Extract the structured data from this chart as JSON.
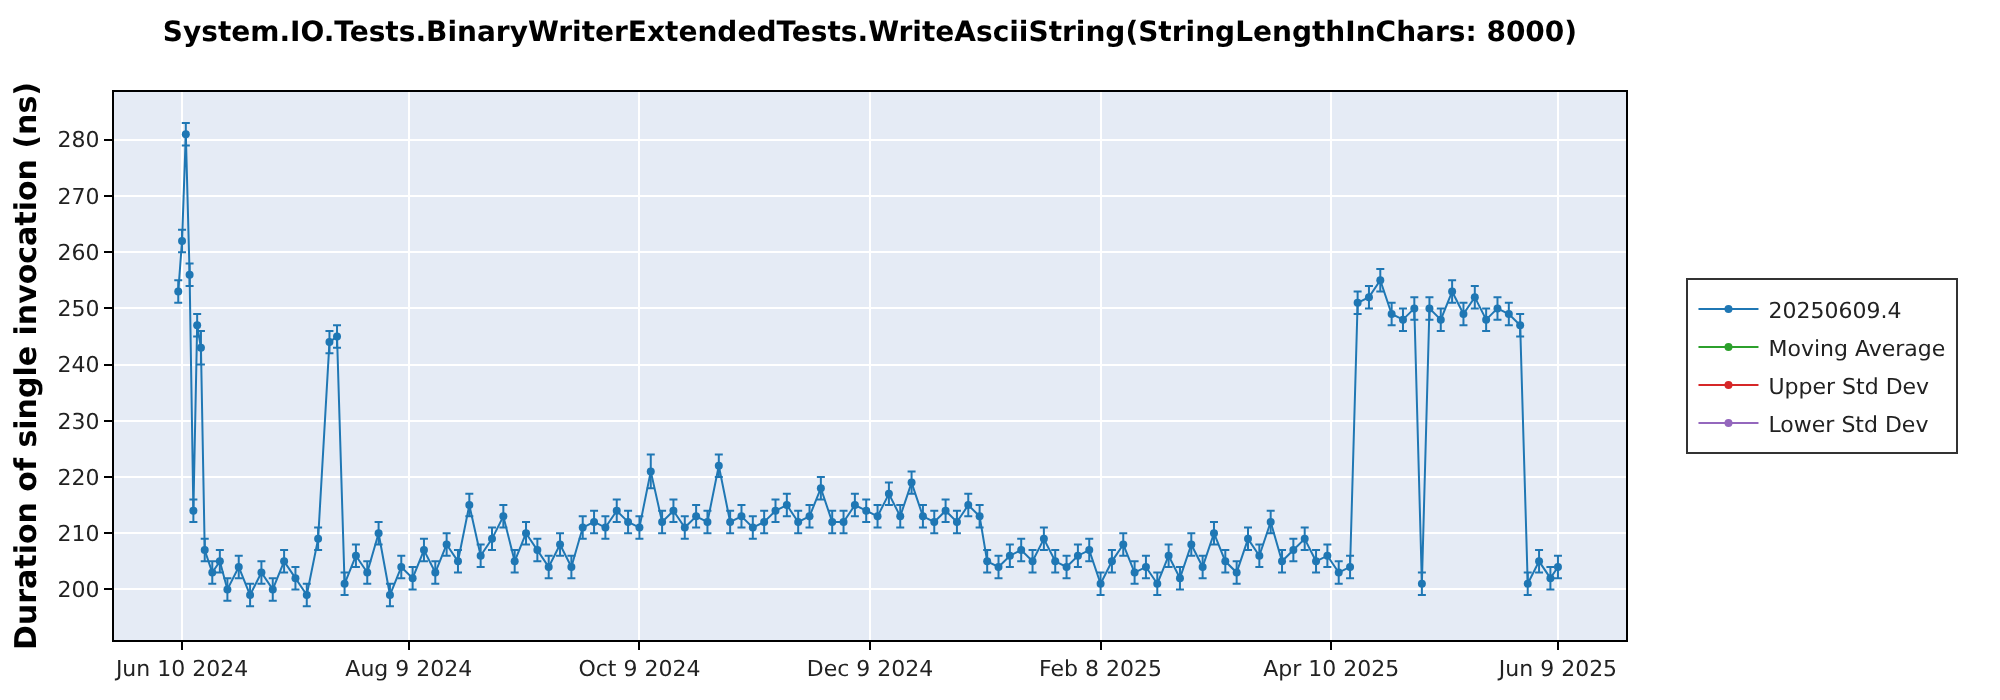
{
  "chart_data": {
    "type": "line",
    "title": "System.IO.Tests.BinaryWriterExtendedTests.WriteAsciiString(StringLengthInChars: 8000)",
    "ylabel": "Duration of single invocation (ns)",
    "x": [
      "2024-06-09",
      "2024-06-10",
      "2024-06-11",
      "2024-06-12",
      "2024-06-13",
      "2024-06-14",
      "2024-06-15",
      "2024-06-16",
      "2024-06-18",
      "2024-06-20",
      "2024-06-22",
      "2024-06-25",
      "2024-06-28",
      "2024-07-01",
      "2024-07-04",
      "2024-07-07",
      "2024-07-10",
      "2024-07-13",
      "2024-07-16",
      "2024-07-19",
      "2024-07-21",
      "2024-07-23",
      "2024-07-26",
      "2024-07-29",
      "2024-08-01",
      "2024-08-04",
      "2024-08-07",
      "2024-08-10",
      "2024-08-13",
      "2024-08-16",
      "2024-08-19",
      "2024-08-22",
      "2024-08-25",
      "2024-08-28",
      "2024-08-31",
      "2024-09-03",
      "2024-09-06",
      "2024-09-09",
      "2024-09-12",
      "2024-09-15",
      "2024-09-18",
      "2024-09-21",
      "2024-09-24",
      "2024-09-27",
      "2024-09-30",
      "2024-10-03",
      "2024-10-06",
      "2024-10-09",
      "2024-10-12",
      "2024-10-15",
      "2024-10-18",
      "2024-10-21",
      "2024-10-24",
      "2024-10-27",
      "2024-10-30",
      "2024-11-02",
      "2024-11-05",
      "2024-11-08",
      "2024-11-11",
      "2024-11-14",
      "2024-11-17",
      "2024-11-20",
      "2024-11-23",
      "2024-11-26",
      "2024-11-29",
      "2024-12-02",
      "2024-12-05",
      "2024-12-08",
      "2024-12-11",
      "2024-12-14",
      "2024-12-17",
      "2024-12-20",
      "2024-12-23",
      "2024-12-26",
      "2024-12-29",
      "2025-01-01",
      "2025-01-04",
      "2025-01-07",
      "2025-01-09",
      "2025-01-12",
      "2025-01-15",
      "2025-01-18",
      "2025-01-21",
      "2025-01-24",
      "2025-01-27",
      "2025-01-30",
      "2025-02-02",
      "2025-02-05",
      "2025-02-08",
      "2025-02-11",
      "2025-02-14",
      "2025-02-17",
      "2025-02-20",
      "2025-02-23",
      "2025-02-26",
      "2025-03-01",
      "2025-03-04",
      "2025-03-07",
      "2025-03-10",
      "2025-03-13",
      "2025-03-16",
      "2025-03-19",
      "2025-03-22",
      "2025-03-25",
      "2025-03-28",
      "2025-03-31",
      "2025-04-03",
      "2025-04-06",
      "2025-04-09",
      "2025-04-12",
      "2025-04-15",
      "2025-04-17",
      "2025-04-20",
      "2025-04-23",
      "2025-04-26",
      "2025-04-29",
      "2025-05-02",
      "2025-05-04",
      "2025-05-06",
      "2025-05-09",
      "2025-05-12",
      "2025-05-15",
      "2025-05-18",
      "2025-05-21",
      "2025-05-24",
      "2025-05-27",
      "2025-05-30",
      "2025-06-01",
      "2025-06-04",
      "2025-06-07",
      "2025-06-09"
    ],
    "series": [
      {
        "name": "20250609.4",
        "color": "#1f77b4",
        "values": [
          253,
          262,
          281,
          256,
          214,
          247,
          243,
          207,
          203,
          205,
          200,
          204,
          199,
          203,
          200,
          205,
          202,
          199,
          209,
          244,
          245,
          201,
          206,
          203,
          210,
          199,
          204,
          202,
          207,
          203,
          208,
          205,
          215,
          206,
          209,
          213,
          205,
          210,
          207,
          204,
          208,
          204,
          211,
          212,
          211,
          214,
          212,
          211,
          221,
          212,
          214,
          211,
          213,
          212,
          222,
          212,
          213,
          211,
          212,
          214,
          215,
          212,
          213,
          218,
          212,
          212,
          215,
          214,
          213,
          217,
          213,
          219,
          213,
          212,
          214,
          212,
          215,
          213,
          205,
          204,
          206,
          207,
          205,
          209,
          205,
          204,
          206,
          207,
          201,
          205,
          208,
          203,
          204,
          201,
          206,
          202,
          208,
          204,
          210,
          205,
          203,
          209,
          206,
          212,
          205,
          207,
          209,
          205,
          206,
          203,
          204,
          251,
          252,
          255,
          249,
          248,
          250,
          201,
          250,
          248,
          253,
          249,
          252,
          248,
          250,
          249,
          247,
          201,
          205,
          202,
          204
        ],
        "errors": [
          2,
          2,
          2,
          2,
          2,
          2,
          3,
          2,
          2,
          2,
          2,
          2,
          2,
          2,
          2,
          2,
          2,
          2,
          2,
          2,
          2,
          2,
          2,
          2,
          2,
          2,
          2,
          2,
          2,
          2,
          2,
          2,
          2,
          2,
          2,
          2,
          2,
          2,
          2,
          2,
          2,
          2,
          2,
          2,
          2,
          2,
          2,
          2,
          3,
          2,
          2,
          2,
          2,
          2,
          2,
          2,
          2,
          2,
          2,
          2,
          2,
          2,
          2,
          2,
          2,
          2,
          2,
          2,
          2,
          2,
          2,
          2,
          2,
          2,
          2,
          2,
          2,
          2,
          2,
          2,
          2,
          2,
          2,
          2,
          2,
          2,
          2,
          2,
          2,
          2,
          2,
          2,
          2,
          2,
          2,
          2,
          2,
          2,
          2,
          2,
          2,
          2,
          2,
          2,
          2,
          2,
          2,
          2,
          2,
          2,
          2,
          2,
          2,
          2,
          2,
          2,
          2,
          2,
          2,
          2,
          2,
          2,
          2,
          2,
          2,
          2,
          2,
          2,
          2,
          2,
          2
        ]
      },
      {
        "name": "Moving Average",
        "color": "#2ca02c",
        "values": [
          null,
          null,
          null,
          null,
          null,
          null,
          null,
          null,
          null,
          null,
          null,
          null,
          null,
          null,
          null,
          null,
          null,
          null,
          null,
          null,
          null,
          null,
          null,
          null,
          null,
          null,
          null,
          null,
          null,
          null,
          null,
          null,
          null,
          null,
          null,
          null,
          null,
          null,
          null,
          null,
          null,
          null,
          null,
          null,
          null,
          null,
          null,
          null,
          null,
          null,
          null,
          null,
          null,
          null,
          null,
          null,
          null,
          null,
          null,
          null,
          null,
          null,
          null,
          null,
          null,
          null,
          null,
          null,
          null,
          null,
          null,
          null,
          null,
          null,
          null,
          null,
          null,
          null,
          null,
          null,
          null,
          null,
          null,
          null,
          null,
          null,
          null,
          null,
          null,
          null,
          null,
          null,
          null,
          null,
          null,
          null,
          null,
          null,
          null,
          null,
          null,
          null,
          null,
          null,
          null,
          null,
          null,
          null,
          null,
          null,
          null,
          null,
          null,
          null,
          null,
          null,
          null,
          null,
          null,
          null,
          null,
          null,
          null,
          null,
          null,
          null,
          null,
          null,
          null,
          null,
          null
        ]
      },
      {
        "name": "Upper Std Dev",
        "color": "#d62728",
        "values": [
          null,
          null,
          null,
          null,
          null,
          null,
          null,
          null,
          null,
          null,
          null,
          null,
          null,
          null,
          null,
          null,
          null,
          null,
          null,
          null,
          null,
          null,
          null,
          null,
          null,
          null,
          null,
          null,
          null,
          null,
          null,
          null,
          null,
          null,
          null,
          null,
          null,
          null,
          null,
          null,
          null,
          null,
          null,
          null,
          null,
          null,
          null,
          null,
          null,
          null,
          null,
          null,
          null,
          null,
          null,
          null,
          null,
          null,
          null,
          null,
          null,
          null,
          null,
          null,
          null,
          null,
          null,
          null,
          null,
          null,
          null,
          null,
          null,
          null,
          null,
          null,
          null,
          null,
          null,
          null,
          null,
          null,
          null,
          null,
          null,
          null,
          null,
          null,
          null,
          null,
          null,
          null,
          null,
          null,
          null,
          null,
          null,
          null,
          null,
          null,
          null,
          null,
          null,
          null,
          null,
          null,
          null,
          null,
          null,
          null,
          null,
          null,
          null,
          null,
          null,
          null,
          null,
          null,
          null,
          null,
          null,
          null,
          null,
          null,
          null,
          null,
          null,
          null,
          null,
          null,
          null
        ]
      },
      {
        "name": "Lower Std Dev",
        "color": "#9467bd",
        "values": [
          null,
          null,
          null,
          null,
          null,
          null,
          null,
          null,
          null,
          null,
          null,
          null,
          null,
          null,
          null,
          null,
          null,
          null,
          null,
          null,
          null,
          null,
          null,
          null,
          null,
          null,
          null,
          null,
          null,
          null,
          null,
          null,
          null,
          null,
          null,
          null,
          null,
          null,
          null,
          null,
          null,
          null,
          null,
          null,
          null,
          null,
          null,
          null,
          null,
          null,
          null,
          null,
          null,
          null,
          null,
          null,
          null,
          null,
          null,
          null,
          null,
          null,
          null,
          null,
          null,
          null,
          null,
          null,
          null,
          null,
          null,
          null,
          null,
          null,
          null,
          null,
          null,
          null,
          null,
          null,
          null,
          null,
          null,
          null,
          null,
          null,
          null,
          null,
          null,
          null,
          null,
          null,
          null,
          null,
          null,
          null,
          null,
          null,
          null,
          null,
          null,
          null,
          null,
          null,
          null,
          null,
          null,
          null,
          null,
          null,
          null,
          null,
          null,
          null,
          null,
          null,
          null,
          null,
          null,
          null,
          null,
          null,
          null,
          null,
          null,
          null,
          null,
          null,
          null,
          null,
          null
        ]
      }
    ],
    "xlim": [
      "2024-05-23",
      "2025-06-27"
    ],
    "xticks": [
      {
        "value": "2024-06-10",
        "label": "Jun 10 2024"
      },
      {
        "value": "2024-08-09",
        "label": "Aug 9 2024"
      },
      {
        "value": "2024-10-09",
        "label": "Oct 9 2024"
      },
      {
        "value": "2024-12-09",
        "label": "Dec 9 2024"
      },
      {
        "value": "2025-02-08",
        "label": "Feb 8 2025"
      },
      {
        "value": "2025-04-10",
        "label": "Apr 10 2025"
      },
      {
        "value": "2025-06-09",
        "label": "Jun 9 2025"
      }
    ],
    "ylim": [
      191,
      288.5
    ],
    "yticks": [
      200,
      210,
      220,
      230,
      240,
      250,
      260,
      270,
      280
    ],
    "grid": true,
    "legend": "right",
    "marker": "circle",
    "line_style": "solid"
  }
}
